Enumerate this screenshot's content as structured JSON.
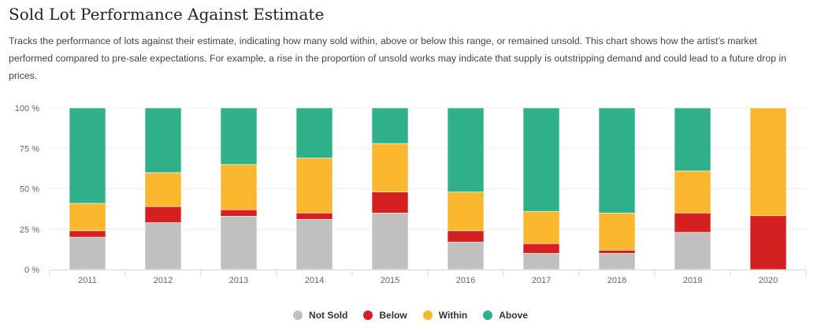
{
  "header": {
    "title": "Sold Lot Performance Against Estimate",
    "description": "Tracks the performance of lots against their estimate, indicating how many sold within, above or below this range, or remained unsold. This chart shows how the artist’s market performed compared to pre-sale expectations. For example, a rise in the proportion of unsold works may indicate that supply is outstripping demand and could lead to a future drop in prices."
  },
  "chart_data": {
    "type": "bar",
    "stacked": true,
    "title": "Sold Lot Performance Against Estimate",
    "xlabel": "",
    "ylabel": "",
    "ylim": [
      0,
      100
    ],
    "y_ticks": [
      0,
      25,
      50,
      75,
      100
    ],
    "y_tick_labels": [
      "0 %",
      "25 %",
      "50 %",
      "75 %",
      "100 %"
    ],
    "grid": true,
    "legend_position": "bottom-center",
    "categories": [
      "2011",
      "2012",
      "2013",
      "2014",
      "2015",
      "2016",
      "2017",
      "2018",
      "2019",
      "2020"
    ],
    "series": [
      {
        "name": "Not Sold",
        "color": "#c2c0bf",
        "values": [
          20,
          29,
          33,
          31,
          35,
          17,
          10,
          10,
          23,
          0
        ]
      },
      {
        "name": "Below",
        "color": "#d42020",
        "values": [
          4,
          10,
          4,
          4,
          13,
          7,
          6,
          2,
          12,
          33.3
        ]
      },
      {
        "name": "Within",
        "color": "#fbb72e",
        "values": [
          17,
          21,
          28,
          34,
          30,
          24,
          20,
          23,
          26,
          66.7
        ]
      },
      {
        "name": "Above",
        "color": "#2fb08a",
        "values": [
          59,
          40,
          35,
          31,
          22,
          52,
          64,
          65,
          39,
          0
        ]
      }
    ]
  }
}
